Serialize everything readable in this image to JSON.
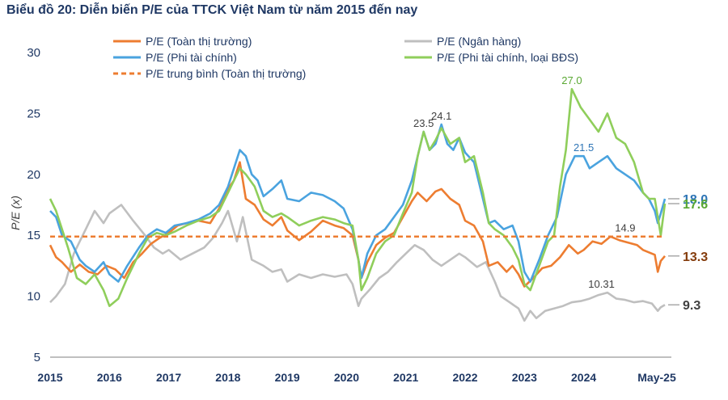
{
  "title": "Biểu đồ 20: Diễn biến P/E của TTCK Việt Nam từ năm 2015 đến nay",
  "chart_data": {
    "type": "line",
    "title": "Biểu đồ 20: Diễn biến P/E của TTCK Việt Nam từ năm 2015 đến nay",
    "xlabel": "",
    "ylabel": "P/E (x)",
    "ylim": [
      5,
      30
    ],
    "yticks": [
      5,
      10,
      15,
      20,
      25,
      30
    ],
    "xlim": [
      2015.0,
      2025.37
    ],
    "xticks": [
      {
        "x": 2015.0,
        "label": "2015"
      },
      {
        "x": 2016.0,
        "label": "2016"
      },
      {
        "x": 2017.0,
        "label": "2017"
      },
      {
        "x": 2018.0,
        "label": "2018"
      },
      {
        "x": 2019.0,
        "label": "2019"
      },
      {
        "x": 2020.0,
        "label": "2020"
      },
      {
        "x": 2021.0,
        "label": "2021"
      },
      {
        "x": 2022.0,
        "label": "2022"
      },
      {
        "x": 2023.0,
        "label": "2023"
      },
      {
        "x": 2024.0,
        "label": "2024"
      },
      {
        "x": 2025.37,
        "label": "May-25"
      }
    ],
    "grid": false,
    "legend_position": "top",
    "series": [
      {
        "name": "P/E (Toàn thị trường)",
        "color": "#ed7d31",
        "x": [
          2015.0,
          2015.1,
          2015.2,
          2015.35,
          2015.5,
          2015.65,
          2015.8,
          2015.95,
          2016.1,
          2016.25,
          2016.4,
          2016.55,
          2016.7,
          2016.85,
          2017.0,
          2017.15,
          2017.3,
          2017.5,
          2017.7,
          2017.85,
          2018.0,
          2018.1,
          2018.2,
          2018.3,
          2018.45,
          2018.6,
          2018.75,
          2018.9,
          2019.0,
          2019.2,
          2019.4,
          2019.6,
          2019.8,
          2019.95,
          2020.1,
          2020.2,
          2020.25,
          2020.35,
          2020.5,
          2020.65,
          2020.8,
          2020.95,
          2021.1,
          2021.2,
          2021.35,
          2021.5,
          2021.6,
          2021.75,
          2021.9,
          2022.0,
          2022.15,
          2022.3,
          2022.4,
          2022.55,
          2022.7,
          2022.8,
          2022.9,
          2023.0,
          2023.15,
          2023.3,
          2023.45,
          2023.6,
          2023.75,
          2023.9,
          2024.0,
          2024.15,
          2024.3,
          2024.45,
          2024.6,
          2024.75,
          2024.9,
          2025.0,
          2025.1,
          2025.2,
          2025.25,
          2025.3,
          2025.37
        ],
        "y": [
          14.2,
          13.2,
          12.8,
          12.0,
          12.6,
          12.0,
          11.8,
          12.5,
          12.2,
          11.5,
          12.8,
          13.5,
          14.3,
          14.8,
          15.2,
          15.8,
          16.0,
          16.2,
          16.0,
          17.2,
          18.8,
          19.5,
          21.0,
          18.0,
          17.5,
          16.3,
          15.8,
          16.5,
          15.4,
          14.6,
          15.3,
          16.2,
          15.8,
          15.6,
          15.0,
          13.0,
          11.5,
          12.8,
          14.2,
          14.8,
          15.2,
          16.5,
          17.8,
          18.5,
          17.8,
          18.6,
          18.8,
          18.0,
          17.5,
          16.2,
          15.8,
          14.5,
          12.5,
          12.8,
          12.0,
          12.5,
          11.8,
          10.8,
          11.5,
          12.3,
          12.5,
          13.2,
          14.2,
          13.5,
          13.8,
          14.5,
          14.3,
          14.9,
          14.6,
          14.4,
          14.2,
          13.8,
          13.6,
          13.4,
          12.0,
          12.9,
          13.3
        ]
      },
      {
        "name": "P/E (Ngân hàng)",
        "color": "#bfbfbf",
        "x": [
          2015.0,
          2015.1,
          2015.25,
          2015.4,
          2015.5,
          2015.6,
          2015.75,
          2015.9,
          2016.0,
          2016.2,
          2016.4,
          2016.6,
          2016.75,
          2016.9,
          2017.0,
          2017.2,
          2017.4,
          2017.6,
          2017.75,
          2017.9,
          2018.0,
          2018.15,
          2018.25,
          2018.4,
          2018.6,
          2018.75,
          2018.9,
          2019.0,
          2019.2,
          2019.4,
          2019.6,
          2019.8,
          2020.0,
          2020.1,
          2020.2,
          2020.25,
          2020.4,
          2020.55,
          2020.7,
          2020.85,
          2021.0,
          2021.15,
          2021.3,
          2021.45,
          2021.6,
          2021.75,
          2021.9,
          2022.0,
          2022.2,
          2022.35,
          2022.5,
          2022.6,
          2022.75,
          2022.9,
          2023.0,
          2023.1,
          2023.2,
          2023.35,
          2023.5,
          2023.65,
          2023.8,
          2023.95,
          2024.1,
          2024.25,
          2024.4,
          2024.55,
          2024.7,
          2024.85,
          2025.0,
          2025.15,
          2025.25,
          2025.3,
          2025.37
        ],
        "y": [
          9.5,
          10.0,
          11.0,
          13.5,
          14.5,
          15.5,
          17.0,
          16.0,
          16.8,
          17.5,
          16.2,
          15.0,
          14.0,
          13.5,
          13.8,
          13.0,
          13.5,
          14.0,
          14.8,
          16.0,
          17.0,
          14.5,
          16.5,
          13.0,
          12.5,
          12.0,
          12.2,
          11.2,
          11.8,
          11.5,
          11.8,
          11.6,
          11.8,
          11.0,
          9.2,
          9.8,
          10.6,
          11.5,
          12.0,
          12.8,
          13.5,
          14.2,
          13.8,
          13.0,
          12.5,
          13.0,
          13.5,
          13.2,
          12.4,
          12.8,
          11.2,
          10.0,
          9.5,
          9.0,
          8.0,
          8.8,
          8.2,
          8.8,
          9.0,
          9.2,
          9.5,
          9.6,
          9.8,
          10.1,
          10.3,
          9.8,
          9.7,
          9.5,
          9.6,
          9.4,
          8.8,
          9.1,
          9.3
        ]
      },
      {
        "name": "P/E (Phi tài chính)",
        "color": "#4aa3df",
        "x": [
          2015.0,
          2015.1,
          2015.2,
          2015.35,
          2015.5,
          2015.6,
          2015.75,
          2015.9,
          2016.0,
          2016.15,
          2016.3,
          2016.5,
          2016.65,
          2016.8,
          2016.95,
          2017.1,
          2017.3,
          2017.5,
          2017.7,
          2017.85,
          2018.0,
          2018.1,
          2018.2,
          2018.3,
          2018.4,
          2018.5,
          2018.6,
          2018.75,
          2018.9,
          2019.0,
          2019.2,
          2019.4,
          2019.6,
          2019.8,
          2019.95,
          2020.1,
          2020.2,
          2020.25,
          2020.35,
          2020.5,
          2020.65,
          2020.8,
          2020.95,
          2021.1,
          2021.2,
          2021.3,
          2021.4,
          2021.5,
          2021.6,
          2021.7,
          2021.8,
          2021.9,
          2022.0,
          2022.15,
          2022.3,
          2022.4,
          2022.5,
          2022.65,
          2022.8,
          2022.9,
          2023.0,
          2023.1,
          2023.25,
          2023.4,
          2023.55,
          2023.7,
          2023.85,
          2024.0,
          2024.1,
          2024.25,
          2024.4,
          2024.55,
          2024.7,
          2024.85,
          2025.0,
          2025.1,
          2025.2,
          2025.25,
          2025.3,
          2025.37
        ],
        "y": [
          17.0,
          16.5,
          15.0,
          14.5,
          13.0,
          12.5,
          12.0,
          12.8,
          11.8,
          11.2,
          12.5,
          14.0,
          15.0,
          15.5,
          15.2,
          15.8,
          16.0,
          16.3,
          16.8,
          17.5,
          19.0,
          20.5,
          22.0,
          21.5,
          20.0,
          19.5,
          18.2,
          18.8,
          19.5,
          18.0,
          17.8,
          18.5,
          18.3,
          17.8,
          17.2,
          15.5,
          13.0,
          11.5,
          13.5,
          15.0,
          15.5,
          16.5,
          17.5,
          19.5,
          21.5,
          23.5,
          22.0,
          22.5,
          24.1,
          22.5,
          22.0,
          23.0,
          21.8,
          21.0,
          18.0,
          16.0,
          16.2,
          15.5,
          15.8,
          14.5,
          12.0,
          11.2,
          13.0,
          15.0,
          16.5,
          20.0,
          21.5,
          21.5,
          20.5,
          21.0,
          21.5,
          20.5,
          20.0,
          19.5,
          18.5,
          18.0,
          17.0,
          16.0,
          16.8,
          18.0
        ]
      },
      {
        "name": "P/E (Phi tài chính, loại BĐS)",
        "color": "#8fce5b",
        "x": [
          2015.0,
          2015.1,
          2015.2,
          2015.3,
          2015.45,
          2015.6,
          2015.75,
          2015.9,
          2016.0,
          2016.15,
          2016.3,
          2016.5,
          2016.65,
          2016.8,
          2016.95,
          2017.1,
          2017.3,
          2017.5,
          2017.7,
          2017.85,
          2018.0,
          2018.1,
          2018.2,
          2018.3,
          2018.45,
          2018.6,
          2018.75,
          2018.9,
          2019.0,
          2019.2,
          2019.4,
          2019.6,
          2019.8,
          2019.95,
          2020.1,
          2020.2,
          2020.25,
          2020.35,
          2020.5,
          2020.65,
          2020.8,
          2020.95,
          2021.1,
          2021.2,
          2021.3,
          2021.4,
          2021.5,
          2021.6,
          2021.75,
          2021.9,
          2022.0,
          2022.15,
          2022.3,
          2022.4,
          2022.5,
          2022.65,
          2022.8,
          2022.9,
          2023.0,
          2023.1,
          2023.25,
          2023.4,
          2023.5,
          2023.6,
          2023.7,
          2023.8,
          2023.95,
          2024.1,
          2024.25,
          2024.4,
          2024.55,
          2024.7,
          2024.85,
          2025.0,
          2025.1,
          2025.2,
          2025.25,
          2025.3,
          2025.37
        ],
        "y": [
          18.0,
          17.0,
          15.5,
          14.0,
          11.5,
          11.0,
          11.8,
          10.5,
          9.2,
          9.8,
          11.5,
          13.5,
          14.8,
          15.2,
          15.0,
          15.3,
          15.8,
          16.2,
          16.5,
          17.0,
          18.5,
          19.5,
          20.5,
          20.0,
          19.0,
          17.0,
          16.5,
          16.8,
          16.5,
          15.8,
          16.2,
          16.5,
          16.3,
          16.0,
          15.8,
          13.0,
          10.5,
          11.5,
          13.5,
          14.5,
          15.0,
          16.8,
          18.5,
          21.5,
          23.5,
          22.0,
          22.8,
          23.8,
          22.5,
          23.0,
          21.0,
          21.5,
          18.5,
          16.0,
          15.5,
          15.0,
          14.0,
          13.0,
          11.0,
          10.5,
          12.5,
          14.5,
          15.0,
          19.0,
          22.0,
          27.0,
          25.5,
          24.5,
          23.5,
          25.0,
          23.0,
          22.5,
          21.0,
          18.5,
          18.0,
          18.0,
          16.5,
          15.0,
          17.6
        ]
      },
      {
        "name": "P/E trung bình (Toàn thị trường)",
        "color": "#ed7d31",
        "dashed": true,
        "x": [
          2015.0,
          2025.37
        ],
        "y": [
          14.9,
          14.9
        ]
      }
    ],
    "annotations": [
      {
        "text": "24.1",
        "x": 2021.6,
        "y": 24.1,
        "color": "#404040"
      },
      {
        "text": "23.5",
        "x": 2021.3,
        "y": 23.5,
        "color": "#404040"
      },
      {
        "text": "27.0",
        "x": 2023.8,
        "y": 27.0,
        "color": "#5aa833"
      },
      {
        "text": "21.5",
        "x": 2024.0,
        "y": 21.5,
        "color": "#2e75b6"
      },
      {
        "text": "14.9",
        "x": 2024.7,
        "y": 14.9,
        "color": "#404040"
      },
      {
        "text": "10.31",
        "x": 2024.3,
        "y": 10.31,
        "color": "#404040"
      }
    ],
    "end_labels": [
      {
        "text": "18.0",
        "y": 18.0,
        "color": "#2e75b6"
      },
      {
        "text": "17.6",
        "y": 17.6,
        "color": "#5aa833"
      },
      {
        "text": "13.3",
        "y": 13.3,
        "color": "#843c0c"
      },
      {
        "text": "9.3",
        "y": 9.3,
        "color": "#404040"
      }
    ]
  }
}
